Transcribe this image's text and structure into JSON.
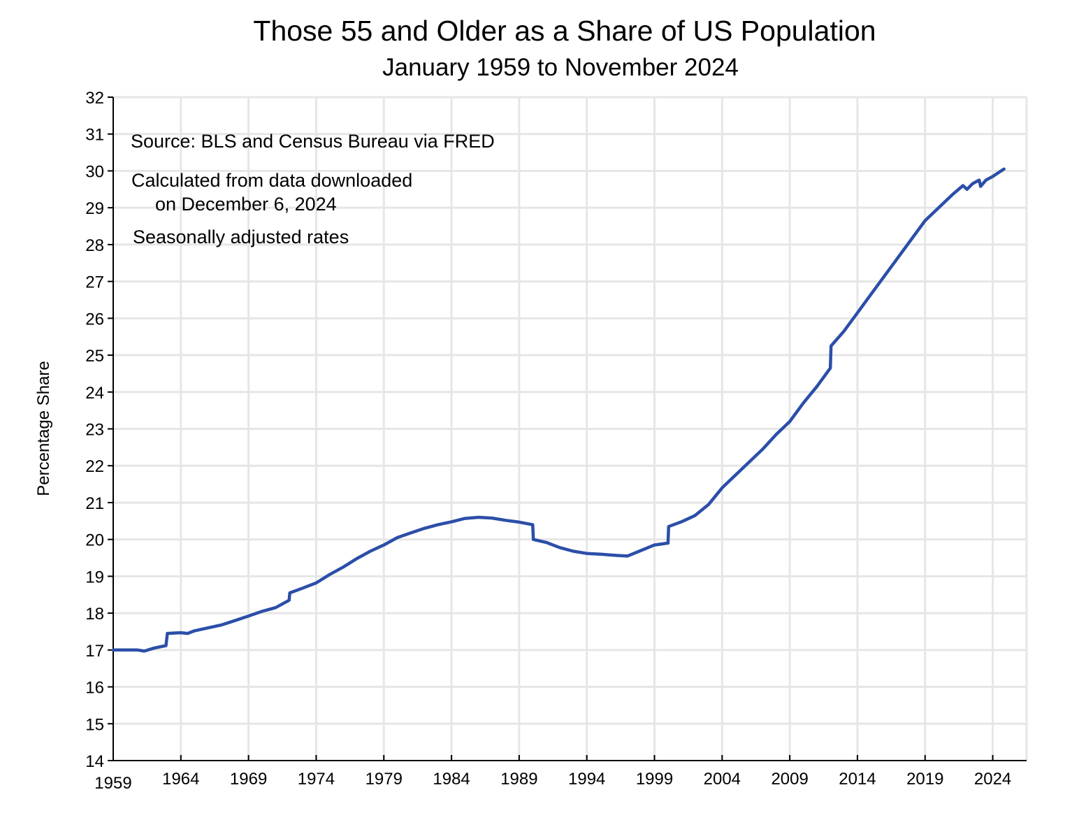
{
  "chart_data": {
    "type": "line",
    "title": "Those 55 and Older as a Share of US Population",
    "subtitle": "January 1959 to November 2024",
    "xlabel": "",
    "ylabel": "Percentage Share",
    "xlim": [
      1959,
      2026.5
    ],
    "ylim": [
      14,
      32
    ],
    "x_ticks": [
      "1959",
      "1964",
      "1969",
      "1974",
      "1979",
      "1984",
      "1989",
      "1994",
      "1999",
      "2004",
      "2009",
      "2014",
      "2019",
      "2024"
    ],
    "y_ticks": [
      "14",
      "15",
      "16",
      "17",
      "18",
      "19",
      "20",
      "21",
      "22",
      "23",
      "24",
      "25",
      "26",
      "27",
      "28",
      "29",
      "30",
      "31",
      "32"
    ],
    "grid": true,
    "annotations": [
      "Source: BLS and Census Bureau via FRED",
      "Calculated from data downloaded",
      "on December 6, 2024",
      "Seasonally adjusted rates"
    ],
    "line_color": "#2b4ea8",
    "series": [
      {
        "x": [
          1959.0,
          1960.0,
          1960.8,
          1961.3,
          1962.0,
          1962.9,
          1963.0,
          1964.0,
          1964.5,
          1965,
          1966,
          1967,
          1968,
          1969,
          1970,
          1971,
          1972,
          1972.05,
          1973,
          1974,
          1975,
          1976,
          1977,
          1978,
          1979,
          1980,
          1981,
          1982,
          1983,
          1984,
          1985,
          1986,
          1987,
          1988,
          1989,
          1990,
          1990.05,
          1991,
          1992,
          1993,
          1994,
          1995,
          1996,
          1997,
          1998,
          1999,
          2000,
          2000.05,
          2001,
          2002,
          2003,
          2004,
          2005,
          2006,
          2007,
          2008,
          2009,
          2010,
          2011,
          2012,
          2012.05,
          2013,
          2014,
          2015,
          2016,
          2017,
          2018,
          2019,
          2020,
          2021,
          2021.8,
          2022.1,
          2022.5,
          2023,
          2023.1,
          2023.5,
          2024,
          2024.83
        ],
        "y": [
          17.0,
          17.0,
          17.0,
          16.97,
          17.05,
          17.12,
          17.45,
          17.47,
          17.45,
          17.52,
          17.6,
          17.68,
          17.8,
          17.92,
          18.05,
          18.15,
          18.35,
          18.55,
          18.68,
          18.82,
          19.05,
          19.25,
          19.48,
          19.68,
          19.85,
          20.05,
          20.18,
          20.3,
          20.4,
          20.48,
          20.57,
          20.6,
          20.58,
          20.52,
          20.47,
          20.4,
          20.0,
          19.92,
          19.78,
          19.68,
          19.62,
          19.6,
          19.57,
          19.55,
          19.7,
          19.85,
          19.9,
          20.35,
          20.48,
          20.65,
          20.95,
          21.4,
          21.75,
          22.1,
          22.45,
          22.85,
          23.2,
          23.7,
          24.15,
          24.65,
          25.25,
          25.65,
          26.15,
          26.65,
          27.15,
          27.65,
          28.15,
          28.65,
          29.0,
          29.35,
          29.6,
          29.5,
          29.65,
          29.75,
          29.58,
          29.75,
          29.85,
          30.05
        ]
      }
    ]
  }
}
